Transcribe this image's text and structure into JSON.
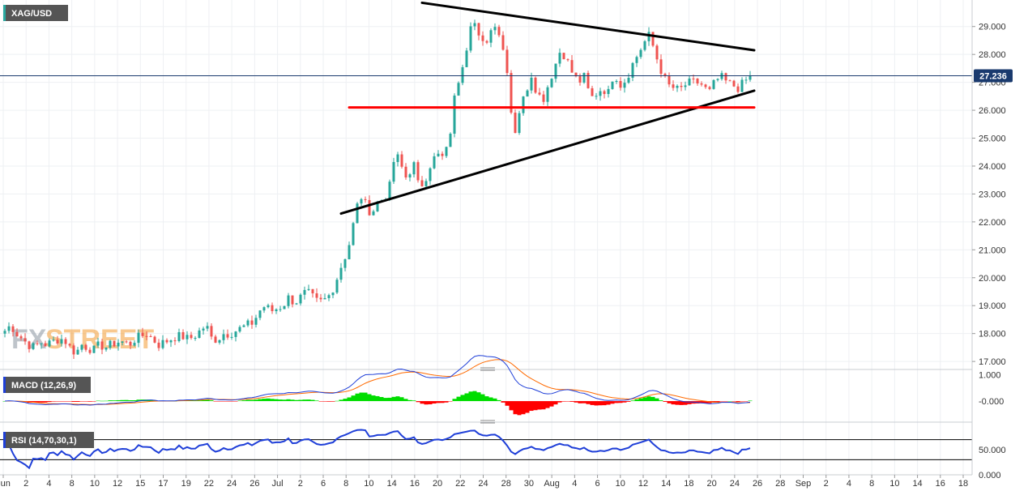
{
  "symbol": "XAG/USD",
  "last_price": "27.236",
  "watermark": {
    "fx": "FX",
    "street": "STREET"
  },
  "colors": {
    "up": "#26a69a",
    "down": "#ef5350",
    "trendline": "#000000",
    "support": "#ff0000",
    "price_line": "#1a3a6e",
    "macd_line": "#1f3fd8",
    "signal_line": "#ff6a00",
    "hist_pos": "#00dd00",
    "hist_neg": "#ff0000",
    "rsi_line": "#1f3fd8",
    "label_bg": "#555555",
    "grid": "#eef0f3"
  },
  "macd": {
    "label": "MACD (12,26,9)",
    "ticks": [
      "1.000",
      "-0.000"
    ]
  },
  "rsi": {
    "label": "RSI (14,70,30,1)",
    "ticks": [
      "50.000",
      "0.000"
    ],
    "levels": [
      70,
      30
    ]
  },
  "chart_data": {
    "type": "candlestick",
    "price_axis": {
      "ticks": [
        "29.000",
        "28.000",
        "27.000",
        "26.000",
        "25.000",
        "24.000",
        "23.000",
        "22.000",
        "21.000",
        "20.000",
        "19.000",
        "18.000",
        "17.000"
      ],
      "ylim": [
        16.8,
        29.95
      ]
    },
    "time_axis": {
      "labels": [
        "Jun",
        "2",
        "4",
        "8",
        "10",
        "12",
        "15",
        "17",
        "19",
        "22",
        "24",
        "26",
        "Jul",
        "2",
        "6",
        "8",
        "10",
        "14",
        "16",
        "20",
        "22",
        "24",
        "28",
        "30",
        "Aug",
        "4",
        "6",
        "10",
        "12",
        "14",
        "18",
        "20",
        "24",
        "26",
        "28",
        "Sep",
        "2",
        "4",
        "8",
        "10",
        "14",
        "16",
        "18"
      ]
    },
    "closes": [
      18.1,
      18.3,
      18.0,
      17.8,
      17.6,
      17.5,
      17.7,
      17.6,
      17.7,
      17.8,
      17.8,
      17.5,
      17.3,
      17.6,
      17.5,
      17.4,
      17.6,
      17.5,
      17.6,
      17.7,
      17.7,
      17.6,
      17.8,
      17.9,
      18.0,
      17.8,
      17.6,
      17.7,
      17.8,
      17.9,
      17.9,
      17.8,
      17.9,
      18.1,
      18.3,
      17.8,
      17.8,
      18.0,
      18.0,
      18.1,
      18.2,
      18.3,
      18.4,
      18.8,
      19.0,
      18.8,
      18.9,
      19.0,
      19.3,
      19.1,
      19.3,
      19.5,
      19.3,
      19.1,
      19.2,
      19.4,
      19.9,
      20.5,
      21.0,
      22.0,
      23.0,
      22.6,
      22.3,
      22.7,
      22.8,
      23.2,
      24.5,
      24.0,
      23.5,
      24.2,
      23.2,
      23.5,
      24.1,
      24.4,
      24.3,
      24.7,
      26.4,
      27.4,
      28.2,
      29.5,
      28.6,
      28.3,
      28.8,
      29.2,
      28.4,
      27.4,
      25.0,
      26.0,
      26.6,
      27.3,
      26.6,
      26.4,
      27.0,
      27.6,
      28.2,
      27.8,
      27.3,
      27.0,
      27.2,
      26.4,
      26.6,
      26.8,
      26.6,
      27.4,
      26.9,
      27.1,
      27.6,
      28.0,
      28.4,
      28.7,
      28.0,
      27.4,
      26.9,
      26.8,
      26.7,
      26.9,
      27.0,
      27.0,
      26.9,
      26.6,
      27.0,
      27.2,
      27.0,
      26.9,
      26.8,
      27.0,
      27.236
    ],
    "trendlines": [
      {
        "name": "triangle-upper",
        "from": {
          "bar": 103,
          "price": 29.85
        },
        "to": {
          "bar": 185,
          "price": 28.15
        }
      },
      {
        "name": "triangle-lower",
        "from": {
          "bar": 83,
          "price": 22.3
        },
        "to": {
          "bar": 185,
          "price": 26.7
        }
      },
      {
        "name": "support",
        "from": {
          "bar": 85,
          "price": 26.1
        },
        "to": {
          "bar": 185,
          "price": 26.1
        }
      }
    ],
    "macd_range": [
      -0.7,
      1.1
    ],
    "rsi_range": [
      0,
      100
    ]
  }
}
